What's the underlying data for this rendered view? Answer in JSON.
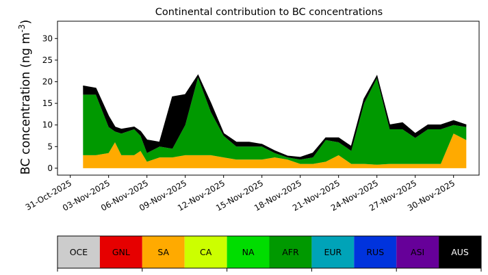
{
  "chart_data": {
    "type": "area",
    "title": "Continental contribution to BC concentrations",
    "xlabel": "",
    "ylabel": "BC concentration (ng m$^{-3}$)",
    "ylim": [
      -1.6,
      34.0
    ],
    "xlim": [
      "2025-10-30",
      "2025-12-02"
    ],
    "yticks": [
      0,
      5,
      10,
      15,
      20,
      25,
      30
    ],
    "xticks": [
      "31-Oct-2025",
      "03-Nov-2025",
      "06-Nov-2025",
      "09-Nov-2025",
      "12-Nov-2025",
      "15-Nov-2025",
      "18-Nov-2025",
      "21-Nov-2025",
      "24-Nov-2025",
      "27-Nov-2025",
      "30-Nov-2025"
    ],
    "grid": false,
    "stacked": true,
    "legend_placement": "bottom",
    "colors": {
      "OCE": "#cccccc",
      "GNL": "#e60000",
      "SA": "#ffaa00",
      "CA": "#ccff00",
      "NA": "#00dd00",
      "AFR": "#009900",
      "EUR": "#00a3b8",
      "RUS": "#0033dd",
      "ASI": "#660099",
      "AUS": "#000000"
    },
    "series": [
      {
        "name": "SA",
        "x": [
          "2025-11-01",
          "2025-11-02",
          "2025-11-03",
          "2025-11-03 12:00",
          "2025-11-04",
          "2025-11-05",
          "2025-11-05 12:00",
          "2025-11-06",
          "2025-11-07",
          "2025-11-08",
          "2025-11-09",
          "2025-11-10",
          "2025-11-11",
          "2025-11-12",
          "2025-11-13",
          "2025-11-14",
          "2025-11-15",
          "2025-11-16",
          "2025-11-17",
          "2025-11-18",
          "2025-11-19",
          "2025-11-20",
          "2025-11-21",
          "2025-11-22",
          "2025-11-23",
          "2025-11-24",
          "2025-11-25",
          "2025-11-26",
          "2025-11-27",
          "2025-11-28",
          "2025-11-29",
          "2025-11-30",
          "2025-12-01"
        ],
        "values": [
          3,
          3,
          3.5,
          6,
          3,
          3,
          4,
          1.5,
          2.5,
          2.5,
          3,
          3,
          3,
          2.5,
          2,
          2,
          2,
          2.5,
          2,
          1,
          1,
          1.5,
          3,
          1,
          1,
          0.8,
          1,
          1,
          1,
          1,
          1,
          8,
          6.5
        ]
      },
      {
        "name": "AFR",
        "x": [
          "2025-11-01",
          "2025-11-02",
          "2025-11-03",
          "2025-11-03 12:00",
          "2025-11-04",
          "2025-11-05",
          "2025-11-05 12:00",
          "2025-11-06",
          "2025-11-07",
          "2025-11-08",
          "2025-11-09",
          "2025-11-10",
          "2025-11-11",
          "2025-11-12",
          "2025-11-13",
          "2025-11-14",
          "2025-11-15",
          "2025-11-16",
          "2025-11-17",
          "2025-11-18",
          "2025-11-19",
          "2025-11-20",
          "2025-11-21",
          "2025-11-22",
          "2025-11-23",
          "2025-11-24",
          "2025-11-25",
          "2025-11-26",
          "2025-11-27",
          "2025-11-28",
          "2025-11-29",
          "2025-11-30",
          "2025-12-01"
        ],
        "values": [
          14,
          14,
          6,
          2.5,
          5,
          6,
          3.5,
          2,
          2.5,
          2,
          7,
          18,
          10,
          5,
          3,
          3,
          3,
          1,
          0.5,
          1,
          1.5,
          5,
          3,
          3,
          14,
          20,
          8,
          8,
          6,
          8,
          8,
          2,
          3
        ]
      },
      {
        "name": "AUS",
        "x": [
          "2025-11-01",
          "2025-11-02",
          "2025-11-03",
          "2025-11-03 12:00",
          "2025-11-04",
          "2025-11-05",
          "2025-11-05 12:00",
          "2025-11-06",
          "2025-11-07",
          "2025-11-08",
          "2025-11-09",
          "2025-11-10",
          "2025-11-11",
          "2025-11-12",
          "2025-11-13",
          "2025-11-14",
          "2025-11-15",
          "2025-11-16",
          "2025-11-17",
          "2025-11-18",
          "2025-11-19",
          "2025-11-20",
          "2025-11-21",
          "2025-11-22",
          "2025-11-23",
          "2025-11-24",
          "2025-11-25",
          "2025-11-26",
          "2025-11-27",
          "2025-11-28",
          "2025-11-29",
          "2025-11-30",
          "2025-12-01"
        ],
        "values": [
          2,
          1.5,
          2.5,
          1,
          1,
          0.5,
          1,
          3,
          1,
          12,
          7,
          0.5,
          2,
          0.5,
          1,
          1,
          0.5,
          0.5,
          0.3,
          0.5,
          1,
          0.5,
          1,
          1,
          1,
          0.5,
          1,
          1.5,
          1,
          1,
          1,
          1,
          0.5
        ]
      }
    ]
  },
  "legend_items": [
    {
      "label": "OCE",
      "color": "#cccccc",
      "text_color": "#000000"
    },
    {
      "label": "GNL",
      "color": "#e60000",
      "text_color": "#000000"
    },
    {
      "label": "SA",
      "color": "#ffaa00",
      "text_color": "#000000"
    },
    {
      "label": "CA",
      "color": "#ccff00",
      "text_color": "#000000"
    },
    {
      "label": "NA",
      "color": "#00dd00",
      "text_color": "#000000"
    },
    {
      "label": "AFR",
      "color": "#009900",
      "text_color": "#000000"
    },
    {
      "label": "EUR",
      "color": "#00a3b8",
      "text_color": "#000000"
    },
    {
      "label": "RUS",
      "color": "#0033dd",
      "text_color": "#000000"
    },
    {
      "label": "ASI",
      "color": "#660099",
      "text_color": "#000000"
    },
    {
      "label": "AUS",
      "color": "#000000",
      "text_color": "#ffffff"
    }
  ]
}
